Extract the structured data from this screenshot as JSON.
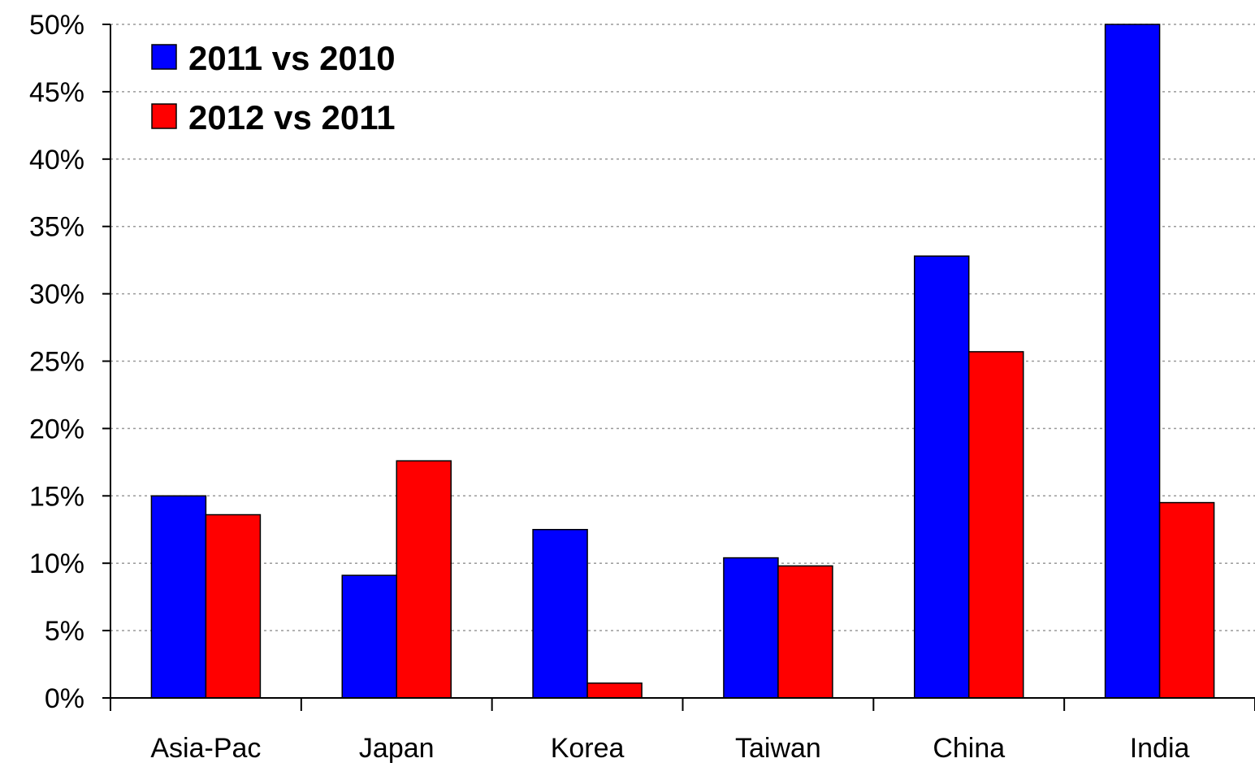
{
  "chart_data": {
    "type": "bar",
    "title": "",
    "xlabel": "",
    "ylabel": "",
    "categories": [
      "Asia-Pac",
      "Japan",
      "Korea",
      "Taiwan",
      "China",
      "India"
    ],
    "series": [
      {
        "name": "2011 vs 2010",
        "color": "#0000ff",
        "values": [
          15.0,
          9.1,
          12.5,
          10.4,
          32.8,
          50.0
        ]
      },
      {
        "name": "2012 vs 2011",
        "color": "#ff0000",
        "values": [
          13.6,
          17.6,
          1.1,
          9.8,
          25.7,
          14.5
        ]
      }
    ],
    "ylim": [
      0,
      50
    ],
    "yticks": [
      0,
      5,
      10,
      15,
      20,
      25,
      30,
      35,
      40,
      45,
      50
    ],
    "ytick_labels": [
      "0%",
      "5%",
      "10%",
      "15%",
      "20%",
      "25%",
      "30%",
      "35%",
      "40%",
      "45%",
      "50%"
    ],
    "grid": true,
    "legend_position": "top-left"
  }
}
